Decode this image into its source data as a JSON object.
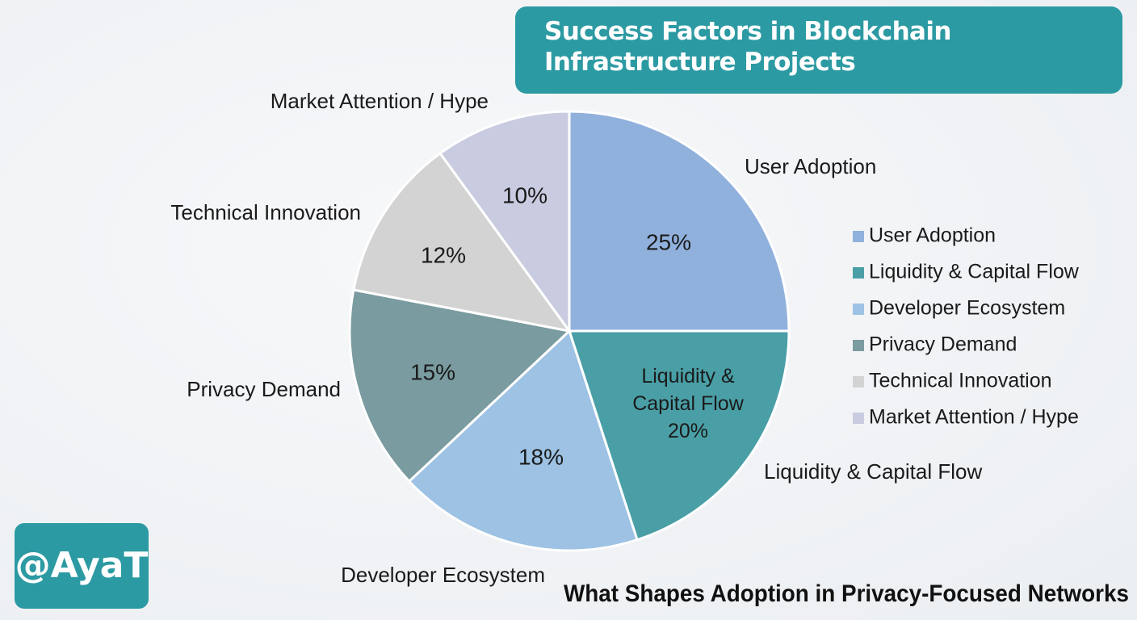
{
  "chart_data": {
    "type": "pie",
    "title": "Success Factors in Blockchain Infrastructure Projects",
    "subtitle": "What Shapes Adoption in Privacy-Focused Networks",
    "annotation": "@AyaT",
    "categories": [
      "User Adoption",
      "Liquidity & Capital Flow",
      "Developer Ecosystem",
      "Privacy Demand",
      "Technical Innovation",
      "Market Attention / Hype"
    ],
    "values": [
      25,
      20,
      18,
      15,
      12,
      10
    ],
    "value_labels": [
      "25%",
      "20%",
      "18%",
      "15%",
      "12%",
      "10%"
    ],
    "colors": [
      "#91b1dd",
      "#4a9fa6",
      "#9dc2e3",
      "#7a9ba0",
      "#d3d3d3",
      "#c9cbe0"
    ],
    "legend": "right"
  }
}
